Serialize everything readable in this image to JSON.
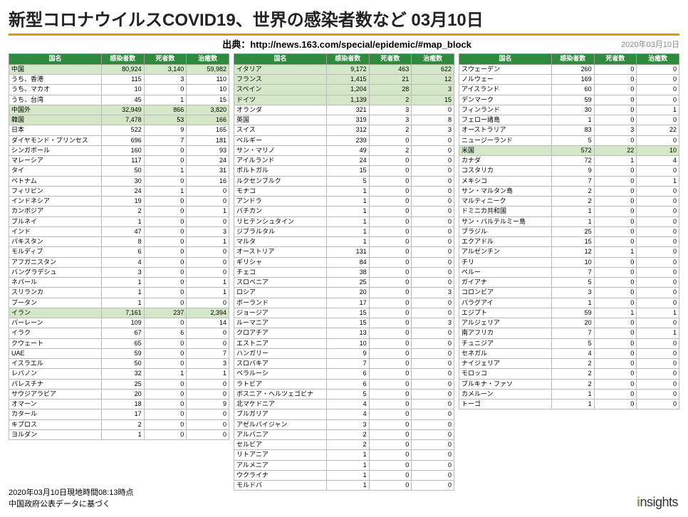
{
  "title": "新型コロナウイルスCOVID19、世界の感染者数など 03月10日",
  "source": "出典：http://news.163.com/special/epidemic/#map_block",
  "date_right": "2020年03月10日",
  "footer_line1": "2020年03月10日現地時間08:13時点",
  "footer_line2": "中国政府公表データに基づく",
  "logo_text": "nsights",
  "headers": {
    "country": "国名",
    "cases": "感染者数",
    "deaths": "死者数",
    "recovered": "治癒数"
  },
  "style": {
    "header_bg": "#2e8b3d",
    "header_fg": "#ffffff",
    "highlight_bg": "#d4e8c8",
    "border": "#bbbbbb",
    "title_color": "#222222",
    "rule_color": "#d4a000",
    "font_size_title": 24,
    "font_size_table": 9,
    "font_size_source": 13,
    "font_size_footer": 11
  },
  "col1": [
    {
      "n": "中国",
      "c": "80,924",
      "d": "3,140",
      "r": "59,982",
      "hl": true
    },
    {
      "n": "うち、香港",
      "c": "115",
      "d": "3",
      "r": "110"
    },
    {
      "n": "うち、マカオ",
      "c": "10",
      "d": "0",
      "r": "10"
    },
    {
      "n": "うち、台湾",
      "c": "45",
      "d": "1",
      "r": "15"
    },
    {
      "n": "中国外",
      "c": "32,949",
      "d": "866",
      "r": "3,820",
      "hl": true
    },
    {
      "n": "韓国",
      "c": "7,478",
      "d": "53",
      "r": "166",
      "hl": true
    },
    {
      "n": "日本",
      "c": "522",
      "d": "9",
      "r": "165"
    },
    {
      "n": "ダイヤモンド・プリンセス",
      "c": "696",
      "d": "7",
      "r": "181"
    },
    {
      "n": "シンガポール",
      "c": "160",
      "d": "0",
      "r": "93"
    },
    {
      "n": "マレーシア",
      "c": "117",
      "d": "0",
      "r": "24"
    },
    {
      "n": "タイ",
      "c": "50",
      "d": "1",
      "r": "31"
    },
    {
      "n": "ベトナム",
      "c": "30",
      "d": "0",
      "r": "16"
    },
    {
      "n": "フィリピン",
      "c": "24",
      "d": "1",
      "r": "0"
    },
    {
      "n": "インドネシア",
      "c": "19",
      "d": "0",
      "r": "0"
    },
    {
      "n": "カンボジア",
      "c": "2",
      "d": "0",
      "r": "1"
    },
    {
      "n": "ブルネイ",
      "c": "1",
      "d": "0",
      "r": "0"
    },
    {
      "n": "インド",
      "c": "47",
      "d": "0",
      "r": "3"
    },
    {
      "n": "パキスタン",
      "c": "8",
      "d": "0",
      "r": "1"
    },
    {
      "n": "モルディブ",
      "c": "6",
      "d": "0",
      "r": "0"
    },
    {
      "n": "アフガニスタン",
      "c": "4",
      "d": "0",
      "r": "0"
    },
    {
      "n": "バングラデシュ",
      "c": "3",
      "d": "0",
      "r": "0"
    },
    {
      "n": "ネパール",
      "c": "1",
      "d": "0",
      "r": "1"
    },
    {
      "n": "スリランカ",
      "c": "1",
      "d": "0",
      "r": "1"
    },
    {
      "n": "ブータン",
      "c": "1",
      "d": "0",
      "r": "0"
    },
    {
      "n": "イラン",
      "c": "7,161",
      "d": "237",
      "r": "2,394",
      "hl": true
    },
    {
      "n": "バーレーン",
      "c": "109",
      "d": "0",
      "r": "14"
    },
    {
      "n": "イラク",
      "c": "67",
      "d": "6",
      "r": "0"
    },
    {
      "n": "クウェート",
      "c": "65",
      "d": "0",
      "r": "0"
    },
    {
      "n": "UAE",
      "c": "59",
      "d": "0",
      "r": "7"
    },
    {
      "n": "イスラエル",
      "c": "50",
      "d": "0",
      "r": "3"
    },
    {
      "n": "レバノン",
      "c": "32",
      "d": "1",
      "r": "1"
    },
    {
      "n": "パレスチナ",
      "c": "25",
      "d": "0",
      "r": "0"
    },
    {
      "n": "サウジアラビア",
      "c": "20",
      "d": "0",
      "r": "0"
    },
    {
      "n": "オマーン",
      "c": "18",
      "d": "0",
      "r": "9"
    },
    {
      "n": "カタール",
      "c": "17",
      "d": "0",
      "r": "0"
    },
    {
      "n": "キプロス",
      "c": "2",
      "d": "0",
      "r": "0"
    },
    {
      "n": "ヨルダン",
      "c": "1",
      "d": "0",
      "r": "0"
    }
  ],
  "col2": [
    {
      "n": "イタリア",
      "c": "9,172",
      "d": "463",
      "r": "622",
      "hl": true
    },
    {
      "n": "フランス",
      "c": "1,415",
      "d": "21",
      "r": "12",
      "hl": true
    },
    {
      "n": "スペイン",
      "c": "1,204",
      "d": "28",
      "r": "3",
      "hl": true
    },
    {
      "n": "ドイツ",
      "c": "1,139",
      "d": "2",
      "r": "15",
      "hl": true
    },
    {
      "n": "オランダ",
      "c": "321",
      "d": "3",
      "r": "0"
    },
    {
      "n": "英国",
      "c": "319",
      "d": "3",
      "r": "8"
    },
    {
      "n": "スイス",
      "c": "312",
      "d": "2",
      "r": "3"
    },
    {
      "n": "ベルギー",
      "c": "239",
      "d": "0",
      "r": "0"
    },
    {
      "n": "サン・マリノ",
      "c": "49",
      "d": "2",
      "r": "0"
    },
    {
      "n": "アイルランド",
      "c": "24",
      "d": "0",
      "r": "0"
    },
    {
      "n": "ポルトガル",
      "c": "15",
      "d": "0",
      "r": "0"
    },
    {
      "n": "ルクセンブルク",
      "c": "5",
      "d": "0",
      "r": "0"
    },
    {
      "n": "モナコ",
      "c": "1",
      "d": "0",
      "r": "0"
    },
    {
      "n": "アンドラ",
      "c": "1",
      "d": "0",
      "r": "0"
    },
    {
      "n": "バチカン",
      "c": "1",
      "d": "0",
      "r": "0"
    },
    {
      "n": "リヒテンシュタイン",
      "c": "1",
      "d": "0",
      "r": "0"
    },
    {
      "n": "ジブラルタル",
      "c": "1",
      "d": "0",
      "r": "0"
    },
    {
      "n": "マルタ",
      "c": "1",
      "d": "0",
      "r": "0"
    },
    {
      "n": "オーストリア",
      "c": "131",
      "d": "0",
      "r": "0"
    },
    {
      "n": "ギリシャ",
      "c": "84",
      "d": "0",
      "r": "0"
    },
    {
      "n": "チェコ",
      "c": "38",
      "d": "0",
      "r": "0"
    },
    {
      "n": "スロベニア",
      "c": "25",
      "d": "0",
      "r": "0"
    },
    {
      "n": "ロシア",
      "c": "20",
      "d": "0",
      "r": "3"
    },
    {
      "n": "ポーランド",
      "c": "17",
      "d": "0",
      "r": "0"
    },
    {
      "n": "ジョージア",
      "c": "15",
      "d": "0",
      "r": "0"
    },
    {
      "n": "ルーマニア",
      "c": "15",
      "d": "0",
      "r": "3"
    },
    {
      "n": "クロアチア",
      "c": "13",
      "d": "0",
      "r": "0"
    },
    {
      "n": "エストニア",
      "c": "10",
      "d": "0",
      "r": "0"
    },
    {
      "n": "ハンガリー",
      "c": "9",
      "d": "0",
      "r": "0"
    },
    {
      "n": "スロバキア",
      "c": "7",
      "d": "0",
      "r": "0"
    },
    {
      "n": "ベラルーシ",
      "c": "6",
      "d": "0",
      "r": "0"
    },
    {
      "n": "ラトビア",
      "c": "6",
      "d": "0",
      "r": "0"
    },
    {
      "n": "ボスニア・ヘルツェゴビナ",
      "c": "5",
      "d": "0",
      "r": "0"
    },
    {
      "n": "北マケドニア",
      "c": "4",
      "d": "0",
      "r": "0"
    },
    {
      "n": "ブルガリア",
      "c": "4",
      "d": "0",
      "r": "0"
    },
    {
      "n": "アゼルバイジャン",
      "c": "3",
      "d": "0",
      "r": "0"
    },
    {
      "n": "アルバニア",
      "c": "2",
      "d": "0",
      "r": "0"
    },
    {
      "n": "セルビア",
      "c": "2",
      "d": "0",
      "r": "0"
    },
    {
      "n": "リトアニア",
      "c": "1",
      "d": "0",
      "r": "0"
    },
    {
      "n": "アルメニア",
      "c": "1",
      "d": "0",
      "r": "0"
    },
    {
      "n": "ウクライナ",
      "c": "1",
      "d": "0",
      "r": "0"
    },
    {
      "n": "モルドバ",
      "c": "1",
      "d": "0",
      "r": "0"
    }
  ],
  "col3": [
    {
      "n": "スウェーデン",
      "c": "260",
      "d": "0",
      "r": "0"
    },
    {
      "n": "ノルウェー",
      "c": "169",
      "d": "0",
      "r": "0"
    },
    {
      "n": "アイスランド",
      "c": "60",
      "d": "0",
      "r": "0"
    },
    {
      "n": "デンマーク",
      "c": "59",
      "d": "0",
      "r": "0"
    },
    {
      "n": "フィンランド",
      "c": "30",
      "d": "0",
      "r": "1"
    },
    {
      "n": "フェロー諸島",
      "c": "1",
      "d": "0",
      "r": "0"
    },
    {
      "n": "オーストラリア",
      "c": "83",
      "d": "3",
      "r": "22"
    },
    {
      "n": "ニュージーランド",
      "c": "5",
      "d": "0",
      "r": "0"
    },
    {
      "n": "米国",
      "c": "572",
      "d": "22",
      "r": "10",
      "hl": true
    },
    {
      "n": "カナダ",
      "c": "72",
      "d": "1",
      "r": "4"
    },
    {
      "n": "コスタリカ",
      "c": "9",
      "d": "0",
      "r": "0"
    },
    {
      "n": "メキシコ",
      "c": "7",
      "d": "0",
      "r": "1"
    },
    {
      "n": "サン・マルタン島",
      "c": "2",
      "d": "0",
      "r": "0"
    },
    {
      "n": "マルティニーク",
      "c": "2",
      "d": "0",
      "r": "0"
    },
    {
      "n": "ドミニカ共和国",
      "c": "1",
      "d": "0",
      "r": "0"
    },
    {
      "n": "サン・バルテルミー島",
      "c": "1",
      "d": "0",
      "r": "0"
    },
    {
      "n": "ブラジル",
      "c": "25",
      "d": "0",
      "r": "0"
    },
    {
      "n": "エクアドル",
      "c": "15",
      "d": "0",
      "r": "0"
    },
    {
      "n": "アルゼンチン",
      "c": "12",
      "d": "1",
      "r": "0"
    },
    {
      "n": "チリ",
      "c": "10",
      "d": "0",
      "r": "0"
    },
    {
      "n": "ペルー",
      "c": "7",
      "d": "0",
      "r": "0"
    },
    {
      "n": "ガイアナ",
      "c": "5",
      "d": "0",
      "r": "0"
    },
    {
      "n": "コロンビア",
      "c": "3",
      "d": "0",
      "r": "0"
    },
    {
      "n": "パラグアイ",
      "c": "1",
      "d": "0",
      "r": "0"
    },
    {
      "n": "エジプト",
      "c": "59",
      "d": "1",
      "r": "1"
    },
    {
      "n": "アルジェリア",
      "c": "20",
      "d": "0",
      "r": "0"
    },
    {
      "n": "南アフリカ",
      "c": "7",
      "d": "0",
      "r": "1"
    },
    {
      "n": "チュニジア",
      "c": "5",
      "d": "0",
      "r": "0"
    },
    {
      "n": "セネガル",
      "c": "4",
      "d": "0",
      "r": "0"
    },
    {
      "n": "ナイジェリア",
      "c": "2",
      "d": "0",
      "r": "0"
    },
    {
      "n": "モロッコ",
      "c": "2",
      "d": "0",
      "r": "0"
    },
    {
      "n": "ブルキナ・ファソ",
      "c": "2",
      "d": "0",
      "r": "0"
    },
    {
      "n": "カメルーン",
      "c": "1",
      "d": "0",
      "r": "0"
    },
    {
      "n": "トーゴ",
      "c": "1",
      "d": "0",
      "r": "0"
    }
  ]
}
